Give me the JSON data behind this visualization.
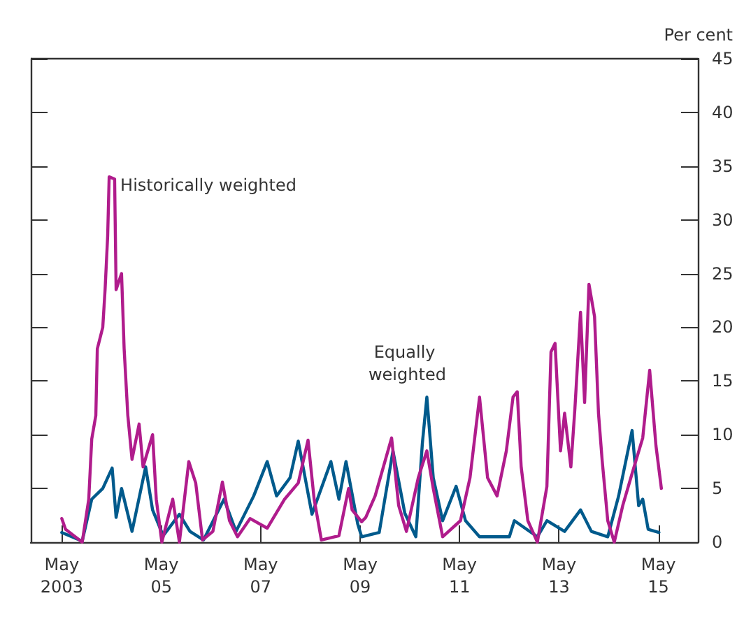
{
  "chart_data": {
    "type": "line",
    "ylabel": "Per cent",
    "xlim": [
      "2002-09-15",
      "2016-02-15"
    ],
    "xticks": [
      {
        "value": "2003-05",
        "label": "May 2003"
      },
      {
        "value": "2005-05",
        "label": "May 05"
      },
      {
        "value": "2007-05",
        "label": "May 07"
      },
      {
        "value": "2009-05",
        "label": "May 09"
      },
      {
        "value": "2011-05",
        "label": "May 11"
      },
      {
        "value": "2013-05",
        "label": "May 13"
      },
      {
        "value": "2015-05",
        "label": "May 15"
      }
    ],
    "ylim": [
      0,
      45
    ],
    "yticks": [
      0,
      5,
      10,
      15,
      20,
      25,
      30,
      35,
      40,
      45
    ],
    "marker": "none",
    "line_style": "solid",
    "series": [
      {
        "name": "Historically weighted",
        "color": "#b01c8c",
        "x": [
          "2003-05-01",
          "2003-05-28",
          "2003-09-28",
          "2003-11-15",
          "2003-12-07",
          "2004-01-06",
          "2004-01-17",
          "2004-02-26",
          "2004-03-14",
          "2004-04-02",
          "2004-04-13",
          "2004-05-23",
          "2004-06-03",
          "2004-07-13",
          "2004-08-01",
          "2004-08-28",
          "2004-09-28",
          "2004-11-19",
          "2004-12-18",
          "2005-02-26",
          "2005-03-25",
          "2005-05-05",
          "2005-07-24",
          "2005-09-11",
          "2005-11-19",
          "2006-01-09",
          "2006-02-28",
          "2006-05-15",
          "2006-07-24",
          "2006-09-14",
          "2006-11-12",
          "2007-02-12",
          "2007-06-18",
          "2007-10-24",
          "2008-02-01",
          "2008-04-13",
          "2008-05-28",
          "2008-07-20",
          "2008-11-26",
          "2009-02-05",
          "2009-03-03",
          "2009-05-12",
          "2009-06-11",
          "2009-08-19",
          "2009-12-18",
          "2010-02-08",
          "2010-04-06",
          "2010-07-02",
          "2010-09-03",
          "2010-10-20",
          "2010-12-28",
          "2011-05-08",
          "2011-07-17",
          "2011-09-25",
          "2011-11-23",
          "2012-02-01",
          "2012-04-09",
          "2012-05-28",
          "2012-06-28",
          "2012-07-27",
          "2012-09-14",
          "2012-11-23",
          "2013-02-01",
          "2013-03-03",
          "2013-04-02",
          "2013-05-12",
          "2013-06-11",
          "2013-07-27",
          "2013-08-26",
          "2013-10-06",
          "2013-11-05",
          "2013-12-07",
          "2014-01-17",
          "2014-02-15",
          "2014-03-14",
          "2014-04-24",
          "2014-06-11",
          "2014-08-12",
          "2014-10-20",
          "2015-01-06",
          "2015-02-26",
          "2015-04-13",
          "2015-05-23"
        ],
        "values": [
          2.2,
          1.2,
          0,
          4,
          9.6,
          11.8,
          18,
          20,
          23.5,
          28.5,
          34,
          33.8,
          23.5,
          25,
          18,
          11.8,
          7.7,
          11,
          7,
          10,
          4,
          0,
          4,
          0,
          7.5,
          5.5,
          0.2,
          1,
          5.6,
          2,
          0.5,
          2.2,
          1.3,
          4,
          5.5,
          9.5,
          4,
          0.2,
          0.6,
          5,
          3,
          1.9,
          2.3,
          4.3,
          9.7,
          3.4,
          1,
          6,
          8.5,
          5,
          0.5,
          2,
          6,
          13.5,
          6,
          4.3,
          8.5,
          13.5,
          14,
          7,
          2,
          0,
          5.2,
          17.7,
          18.5,
          8.5,
          12,
          7,
          12.5,
          21.4,
          13,
          24,
          21,
          12,
          7.6,
          2,
          0,
          3.4,
          6.4,
          9.7,
          16,
          9,
          5
        ]
      },
      {
        "name": "Equally weighted",
        "color": "#005a8c",
        "x": [
          "2003-05-01",
          "2003-09-28",
          "2003-12-07",
          "2004-02-26",
          "2004-05-05",
          "2004-06-03",
          "2004-07-13",
          "2004-09-28",
          "2005-01-06",
          "2005-02-26",
          "2005-05-15",
          "2005-09-11",
          "2005-11-28",
          "2006-03-07",
          "2006-08-05",
          "2006-11-01",
          "2007-03-11",
          "2007-06-18",
          "2007-08-26",
          "2007-12-03",
          "2008-02-01",
          "2008-05-12",
          "2008-09-28",
          "2008-11-26",
          "2009-01-17",
          "2009-04-13",
          "2009-05-12",
          "2009-09-18",
          "2009-12-28",
          "2010-03-25",
          "2010-06-14",
          "2010-08-01",
          "2010-09-03",
          "2010-10-20",
          "2010-12-28",
          "2011-04-06",
          "2011-06-14",
          "2011-09-25",
          "2012-05-01",
          "2012-06-07",
          "2012-11-23",
          "2013-02-01",
          "2013-06-11",
          "2013-10-06",
          "2013-12-25",
          "2014-04-24",
          "2014-07-13",
          "2014-10-20",
          "2014-12-07",
          "2015-01-06",
          "2015-02-15",
          "2015-05-05"
        ],
        "values": [
          0.9,
          0.1,
          4,
          5,
          6.9,
          2.3,
          5,
          1,
          7,
          3,
          0.6,
          2.6,
          1,
          0.2,
          4,
          1,
          4.3,
          7.5,
          4.3,
          6,
          9.4,
          2.6,
          7.5,
          4,
          7.5,
          1.7,
          0.5,
          0.9,
          8.5,
          2.7,
          0.5,
          9.2,
          13.5,
          6,
          2,
          5.2,
          2,
          0.5,
          0.5,
          2,
          0.5,
          2,
          1,
          3,
          1,
          0.5,
          4.3,
          10.4,
          3.4,
          4,
          1.2,
          0.9
        ]
      }
    ]
  }
}
